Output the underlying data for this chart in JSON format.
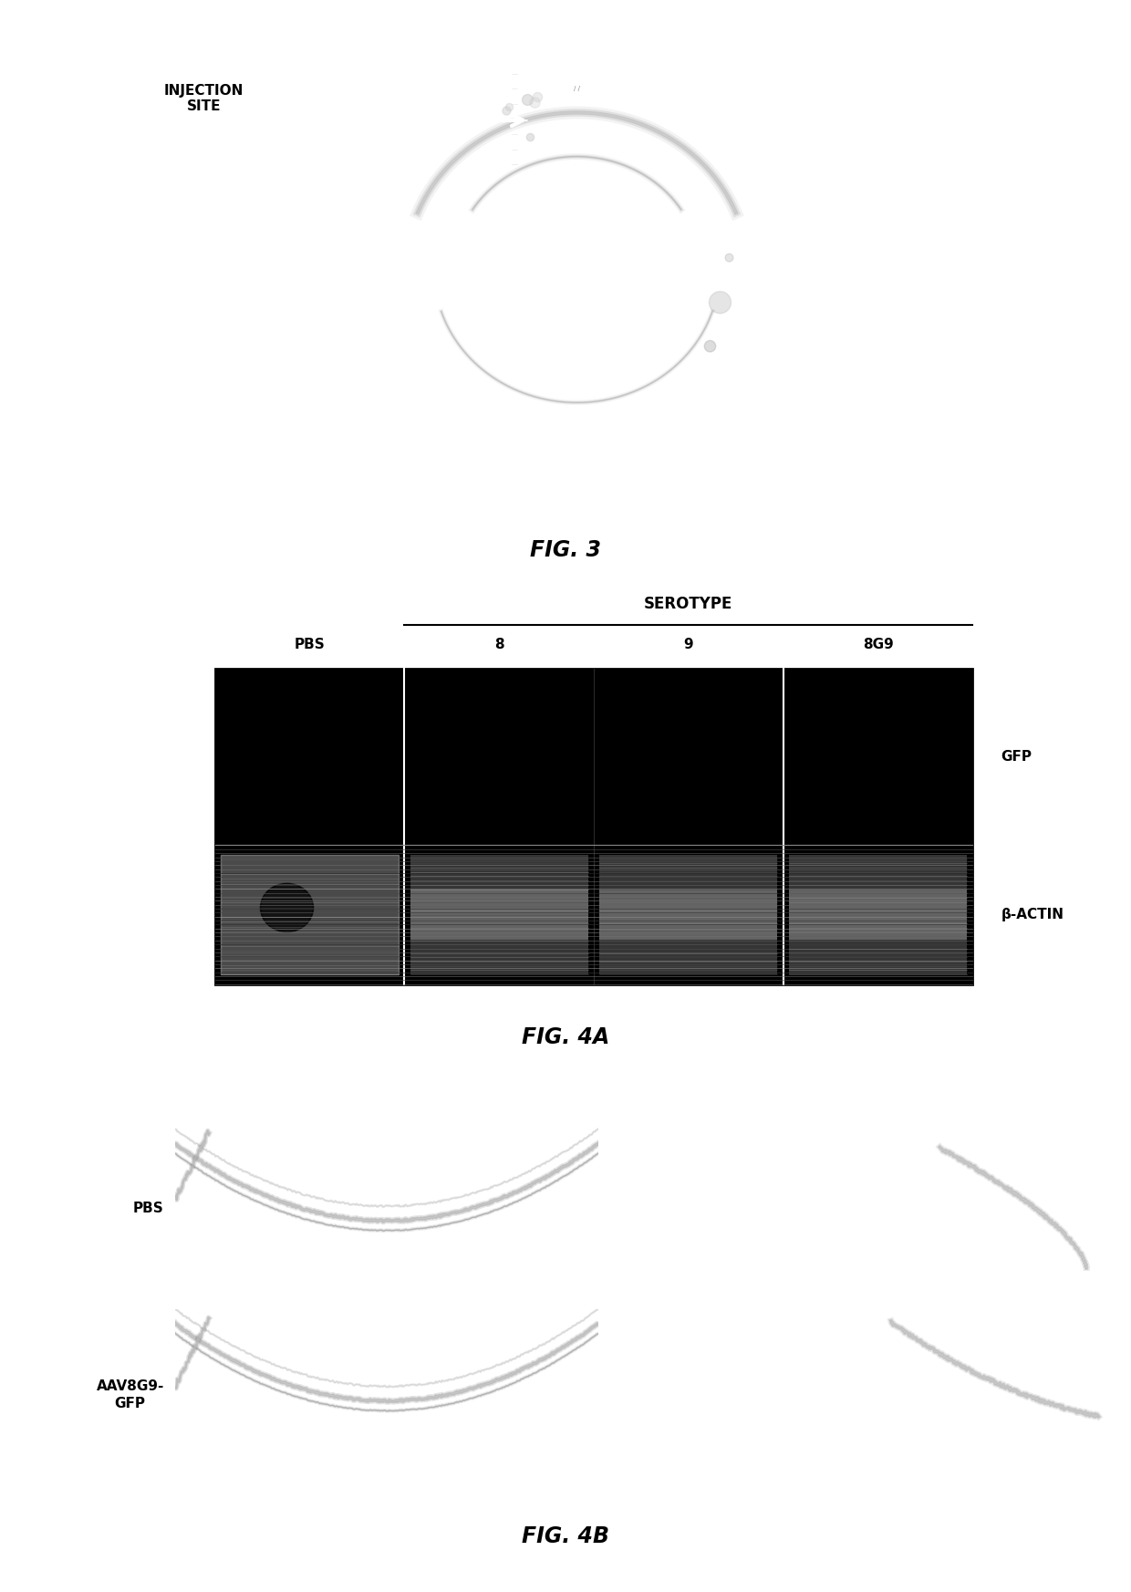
{
  "fig3_label": "FIG. 3",
  "fig4a_label": "FIG. 4A",
  "fig4b_label": "FIG. 4B",
  "injection_site_text": "INJECTION\nSITE",
  "serotype_text": "SEROTYPE",
  "col_labels": [
    "PBS",
    "8",
    "9",
    "8G9"
  ],
  "gfp_text": "GFP",
  "bactin_text": "β-ACTIN",
  "pbs_row_text": "PBS",
  "aav_row_text": "AAV8G9-\nGFP",
  "bg_color": "#ffffff"
}
